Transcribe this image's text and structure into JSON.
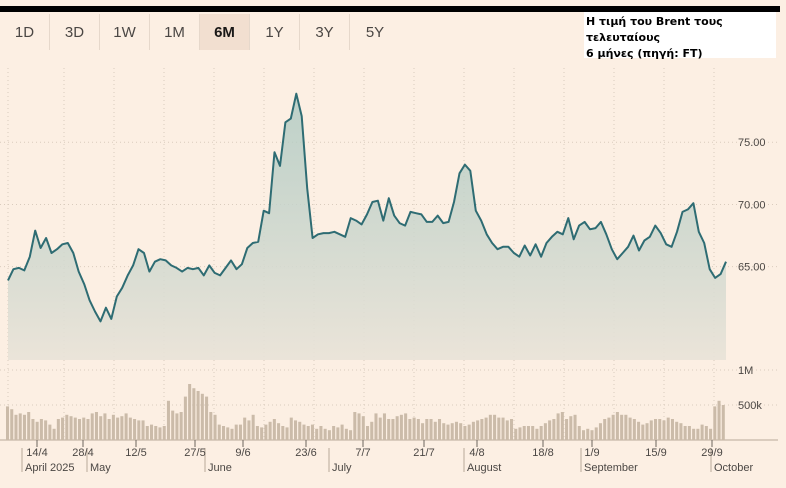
{
  "tabs": [
    {
      "label": "1D",
      "active": false
    },
    {
      "label": "3D",
      "active": false
    },
    {
      "label": "1W",
      "active": false
    },
    {
      "label": "1M",
      "active": false
    },
    {
      "label": "6M",
      "active": true
    },
    {
      "label": "1Y",
      "active": false
    },
    {
      "label": "3Y",
      "active": false
    },
    {
      "label": "5Y",
      "active": false
    }
  ],
  "caption": {
    "line1": "Η τιμή του Brent τους τελευταίους",
    "line2": "6 μήνες (πηγή: FT)"
  },
  "colors": {
    "line": "#2e6c73",
    "bars": "#cbbba9",
    "grid": "#d9cbbd",
    "background": "#fcefe3"
  },
  "chart_data": {
    "type": "line",
    "series": [
      {
        "values": [
          63.9,
          64.8,
          64.9,
          64.7,
          65.8,
          67.9,
          66.5,
          67.3,
          66.1,
          66.4,
          66.8,
          66.9,
          66.1,
          64.6,
          63.6,
          62.3,
          61.4,
          60.6,
          61.7,
          60.8,
          62.6,
          63.3,
          64.3,
          65.1,
          66.4,
          66.1,
          64.6,
          65.4,
          65.6,
          65.5,
          65.1,
          64.9,
          64.6,
          64.9,
          64.8,
          64.9,
          64.3,
          65.1,
          64.5,
          64.3,
          64.9,
          65.5,
          64.8,
          65.2,
          66.5,
          66.9,
          67.0,
          69.5,
          69.3,
          74.2,
          73.1,
          76.6,
          76.9,
          78.9,
          77.1,
          71.3,
          67.3,
          67.6,
          67.7,
          67.7,
          67.8,
          67.6,
          67.4,
          68.9,
          68.7,
          68.4,
          69.2,
          70.2,
          70.3,
          68.7,
          70.5,
          69.1,
          68.5,
          68.3,
          69.4,
          69.3,
          69.2,
          68.6,
          68.6,
          69.1,
          68.5,
          68.6,
          70.2,
          72.5,
          73.2,
          72.7,
          69.5,
          68.7,
          67.6,
          66.9,
          66.4,
          66.6,
          66.6,
          66.1,
          65.8,
          66.7,
          65.9,
          66.8,
          65.8,
          66.9,
          67.4,
          67.8,
          67.6,
          68.9,
          67.2,
          68.3,
          68.6,
          68.0,
          68.1,
          68.6,
          67.6,
          66.4,
          65.6,
          66.1,
          66.6,
          67.5,
          66.3,
          67.1,
          67.4,
          68.3,
          67.7,
          66.8,
          66.6,
          67.8,
          69.4,
          69.6,
          70.1,
          67.8,
          66.9,
          64.8,
          64.1,
          64.4,
          65.4
        ]
      }
    ],
    "volume": [
      480,
      440,
      360,
      380,
      360,
      400,
      300,
      260,
      300,
      280,
      220,
      160,
      300,
      320,
      360,
      340,
      320,
      300,
      320,
      300,
      380,
      400,
      340,
      380,
      300,
      360,
      320,
      340,
      380,
      320,
      300,
      280,
      280,
      200,
      220,
      200,
      180,
      200,
      560,
      420,
      380,
      400,
      620,
      800,
      740,
      700,
      660,
      620,
      400,
      360,
      220,
      200,
      180,
      160,
      220,
      220,
      320,
      280,
      360,
      200,
      180,
      220,
      260,
      300,
      240,
      200,
      180,
      320,
      280,
      260,
      220,
      200,
      220,
      160,
      200,
      160,
      140,
      200,
      180,
      220,
      160,
      140,
      400,
      380,
      340,
      200,
      260,
      380,
      320,
      380,
      300,
      300,
      340,
      360,
      380,
      300,
      320,
      300,
      240,
      300,
      300,
      260,
      300,
      240,
      220,
      240,
      260,
      240,
      200,
      220,
      260,
      280,
      300,
      320,
      360,
      360,
      320,
      320,
      280,
      300,
      160,
      180,
      200,
      200,
      200,
      160,
      200,
      240,
      280,
      300,
      380,
      400,
      300,
      340,
      360,
      200,
      140,
      160,
      140,
      180,
      240,
      300,
      320,
      360,
      400,
      360,
      360,
      320,
      300,
      260,
      220,
      240,
      280,
      300,
      300,
      280,
      320,
      300,
      260,
      240,
      200,
      200,
      160,
      160,
      220,
      200,
      160,
      480,
      560,
      500
    ],
    "y_ticks": [
      "75.00",
      "70.00",
      "65.00"
    ],
    "y_tick_values": [
      75,
      70,
      65
    ],
    "ylim": [
      57.5,
      80
    ],
    "volume_ticks": [
      "1M",
      "500k"
    ],
    "volume_tick_values": [
      1000000,
      500000
    ],
    "x_tick_labels": [
      "14/4",
      "28/4",
      "12/5",
      "27/5",
      "9/6",
      "23/6",
      "7/7",
      "21/7",
      "4/8",
      "18/8",
      "1/9",
      "15/9",
      "29/9"
    ],
    "x_month_labels": [
      "April 2025",
      "May",
      "June",
      "July",
      "August",
      "September",
      "October"
    ],
    "grid": true,
    "legend": "none"
  }
}
